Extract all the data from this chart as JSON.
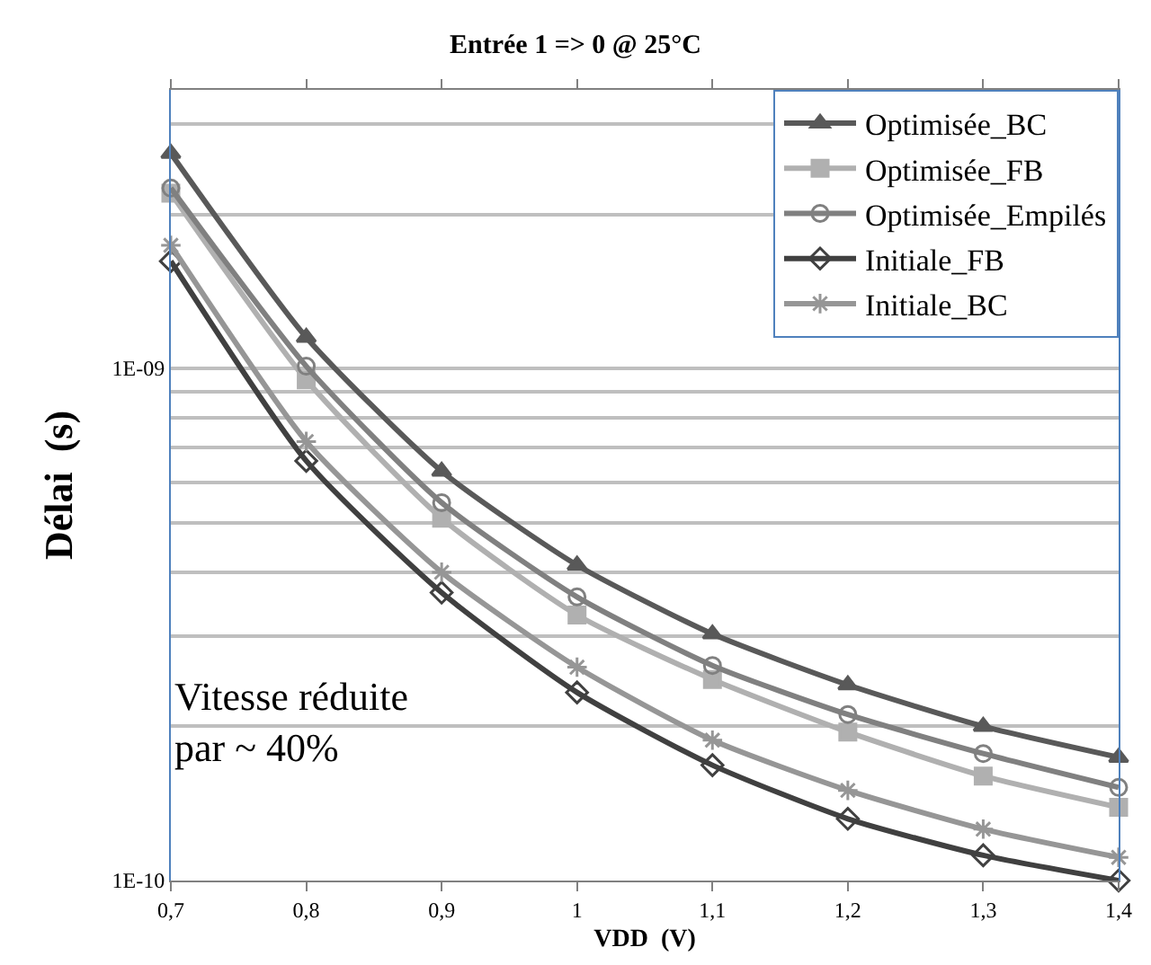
{
  "chart_data": {
    "type": "line",
    "title": "Entrée 1 => 0 @ 25°C",
    "xlabel": "VDD  (V)",
    "ylabel": "Délai  (s)",
    "x": [
      0.7,
      0.8,
      0.9,
      1.0,
      1.1,
      1.2,
      1.3,
      1.4
    ],
    "series": [
      {
        "name": "Optimisée_BC",
        "color": "#595959",
        "marker": "triangle",
        "values": [
          2.63e-09,
          1.15e-09,
          6.3e-10,
          4.13e-10,
          3.03e-10,
          2.41e-10,
          2e-10,
          1.74e-10
        ]
      },
      {
        "name": "Optimisée_FB",
        "color": "#b0b0b0",
        "marker": "square",
        "values": [
          2.2e-09,
          9.5e-10,
          5.1e-10,
          3.3e-10,
          2.47e-10,
          1.95e-10,
          1.6e-10,
          1.39e-10
        ]
      },
      {
        "name": "Optimisée_Empilés",
        "color": "#808080",
        "marker": "circle",
        "values": [
          2.25e-09,
          1.01e-09,
          5.47e-10,
          3.58e-10,
          2.63e-10,
          2.11e-10,
          1.77e-10,
          1.52e-10
        ]
      },
      {
        "name": "Initiale_FB",
        "color": "#404040",
        "marker": "diamond",
        "values": [
          1.62e-09,
          6.6e-10,
          3.65e-10,
          2.33e-10,
          1.68e-10,
          1.32e-10,
          1.12e-10,
          1e-10
        ]
      },
      {
        "name": "Initiale_BC",
        "color": "#969696",
        "marker": "cross",
        "values": [
          1.74e-09,
          7.2e-10,
          4e-10,
          2.61e-10,
          1.88e-10,
          1.5e-10,
          1.26e-10,
          1.11e-10
        ]
      }
    ],
    "log": "y",
    "xlim": [
      0.7,
      1.4
    ],
    "ylim": [
      1e-10,
      3.5e-09
    ],
    "xticks": [
      {
        "value": 0.7,
        "label": "0,7"
      },
      {
        "value": 0.8,
        "label": "0,8"
      },
      {
        "value": 0.9,
        "label": "0,9"
      },
      1,
      {
        "value": 1.1,
        "label": "1,1"
      },
      {
        "value": 1.2,
        "label": "1,2"
      },
      {
        "value": 1.3,
        "label": "1,3"
      },
      {
        "value": 1.4,
        "label": "1,4"
      }
    ],
    "yticks": [
      {
        "value": 1e-10,
        "label": "1E-10"
      },
      {
        "value": 2e-10,
        "label": null
      },
      {
        "value": 3e-10,
        "label": null
      },
      {
        "value": 4e-10,
        "label": null
      },
      {
        "value": 5e-10,
        "label": null
      },
      {
        "value": 6e-10,
        "label": null
      },
      {
        "value": 7e-10,
        "label": null
      },
      {
        "value": 8e-10,
        "label": null
      },
      {
        "value": 9e-10,
        "label": null
      },
      {
        "value": 1e-09,
        "label": "1E-09"
      },
      {
        "value": 2e-09,
        "label": null
      },
      {
        "value": 3e-09,
        "label": null
      }
    ],
    "grid": "y",
    "legend": "top right",
    "line_style": "solid",
    "annotations": [
      "Vitesse réduite\npar ~ 40%"
    ]
  }
}
